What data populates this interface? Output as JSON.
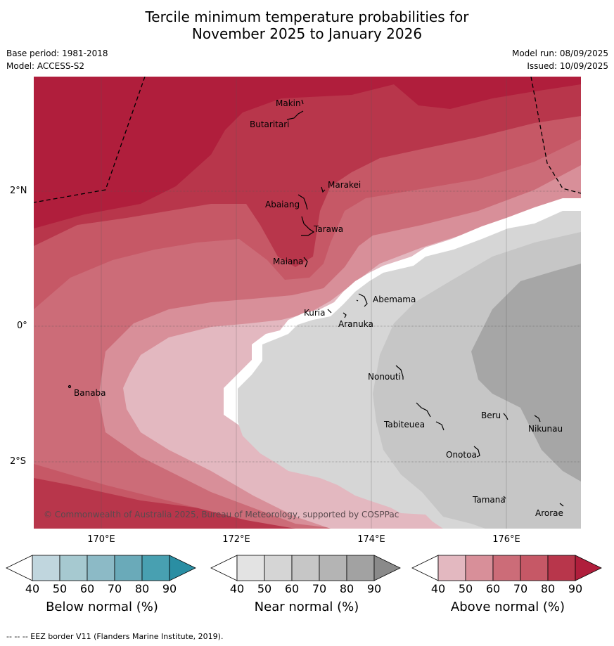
{
  "title_line1": "Tercile minimum temperature probabilities for",
  "title_line2": "November 2025 to January 2026",
  "base_period": "Base period: 1981-2018",
  "model": "Model: ACCESS-S2",
  "model_run": "Model run: 08/09/2025",
  "issued": "Issued: 10/09/2025",
  "copyright": "© Commonwealth of Australia 2025, Bureau of Meteorology, supported by COSPPac",
  "latitude_labels": [
    "2°N",
    "0°",
    "2°S"
  ],
  "longitude_labels": [
    "170°E",
    "172°E",
    "174°E",
    "176°E"
  ],
  "places": [
    "Makin",
    "Butaritari",
    "Marakei",
    "Abaiang",
    "Tarawa",
    "Maiana",
    "Abemama",
    "Kuria",
    "Aranuka",
    "Banaba",
    "Nonouti",
    "Tabiteuea",
    "Beru",
    "Nikunau",
    "Onotoa",
    "Tamana",
    "Arorae"
  ],
  "colorbars": [
    {
      "label": "Below normal (%)",
      "ticks": [
        "40",
        "50",
        "60",
        "70",
        "80",
        "90"
      ],
      "colors": [
        "#c0d6de",
        "#a6c9d0",
        "#8cbac6",
        "#6aaab9",
        "#48a0b1",
        "#2a8ea3"
      ]
    },
    {
      "label": "Near normal (%)",
      "ticks": [
        "40",
        "50",
        "60",
        "70",
        "80",
        "90"
      ],
      "colors": [
        "#e3e3e3",
        "#d5d5d5",
        "#c6c6c6",
        "#b4b4b4",
        "#a2a2a2",
        "#8a8a8a"
      ]
    },
    {
      "label": "Above normal (%)",
      "ticks": [
        "40",
        "50",
        "60",
        "70",
        "80",
        "90"
      ],
      "colors": [
        "#e3b8c0",
        "#d88f99",
        "#cc6c78",
        "#c65866",
        "#b8364b",
        "#b01e3c"
      ]
    }
  ],
  "footer": "-- -- -- EEZ border V11 (Flanders Marine Institute, 2019)."
}
